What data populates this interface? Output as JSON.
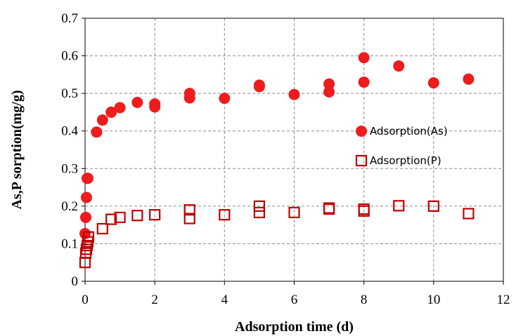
{
  "chart_data": {
    "type": "scatter",
    "title": "",
    "xlabel": "Adsorption time (d)",
    "ylabel": "As,P sorption(mg/g)",
    "xlim": [
      0,
      12
    ],
    "ylim": [
      0,
      0.7
    ],
    "xticks": [
      "0",
      "2",
      "4",
      "6",
      "8",
      "10",
      "12"
    ],
    "yticks": [
      "0",
      "0.1",
      "0.2",
      "0.3",
      "0.4",
      "0.5",
      "0.6",
      "0.7"
    ],
    "grid": true,
    "legend_position": "right-center",
    "series": [
      {
        "name": "Adsorption(As)",
        "marker": "filled-circle",
        "color": "#ee1c1c",
        "x": [
          0.0,
          0.02,
          0.04,
          0.06,
          0.08,
          0.33,
          0.5,
          0.75,
          1.0,
          1.5,
          2.0,
          2.0,
          3.0,
          3.0,
          4.0,
          5.0,
          5.0,
          6.0,
          7.0,
          7.0,
          8.0,
          8.0,
          9.0,
          10.0,
          11.0
        ],
        "y": [
          0.127,
          0.17,
          0.223,
          0.274,
          0.274,
          0.397,
          0.429,
          0.45,
          0.462,
          0.476,
          0.464,
          0.472,
          0.488,
          0.5,
          0.487,
          0.518,
          0.522,
          0.497,
          0.504,
          0.525,
          0.53,
          0.595,
          0.573,
          0.528,
          0.538
        ]
      },
      {
        "name": "Adsorption(P)",
        "marker": "open-square",
        "color": "#c00000",
        "x": [
          0.0,
          0.02,
          0.04,
          0.06,
          0.08,
          0.1,
          0.5,
          0.75,
          1.0,
          1.5,
          2.0,
          3.0,
          3.0,
          4.0,
          5.0,
          5.0,
          6.0,
          7.0,
          7.0,
          8.0,
          8.0,
          9.0,
          10.0,
          11.0
        ],
        "y": [
          0.05,
          0.075,
          0.085,
          0.095,
          0.105,
          0.118,
          0.14,
          0.165,
          0.17,
          0.175,
          0.177,
          0.167,
          0.19,
          0.177,
          0.183,
          0.2,
          0.183,
          0.192,
          0.195,
          0.187,
          0.192,
          0.201,
          0.2,
          0.18
        ]
      }
    ]
  }
}
